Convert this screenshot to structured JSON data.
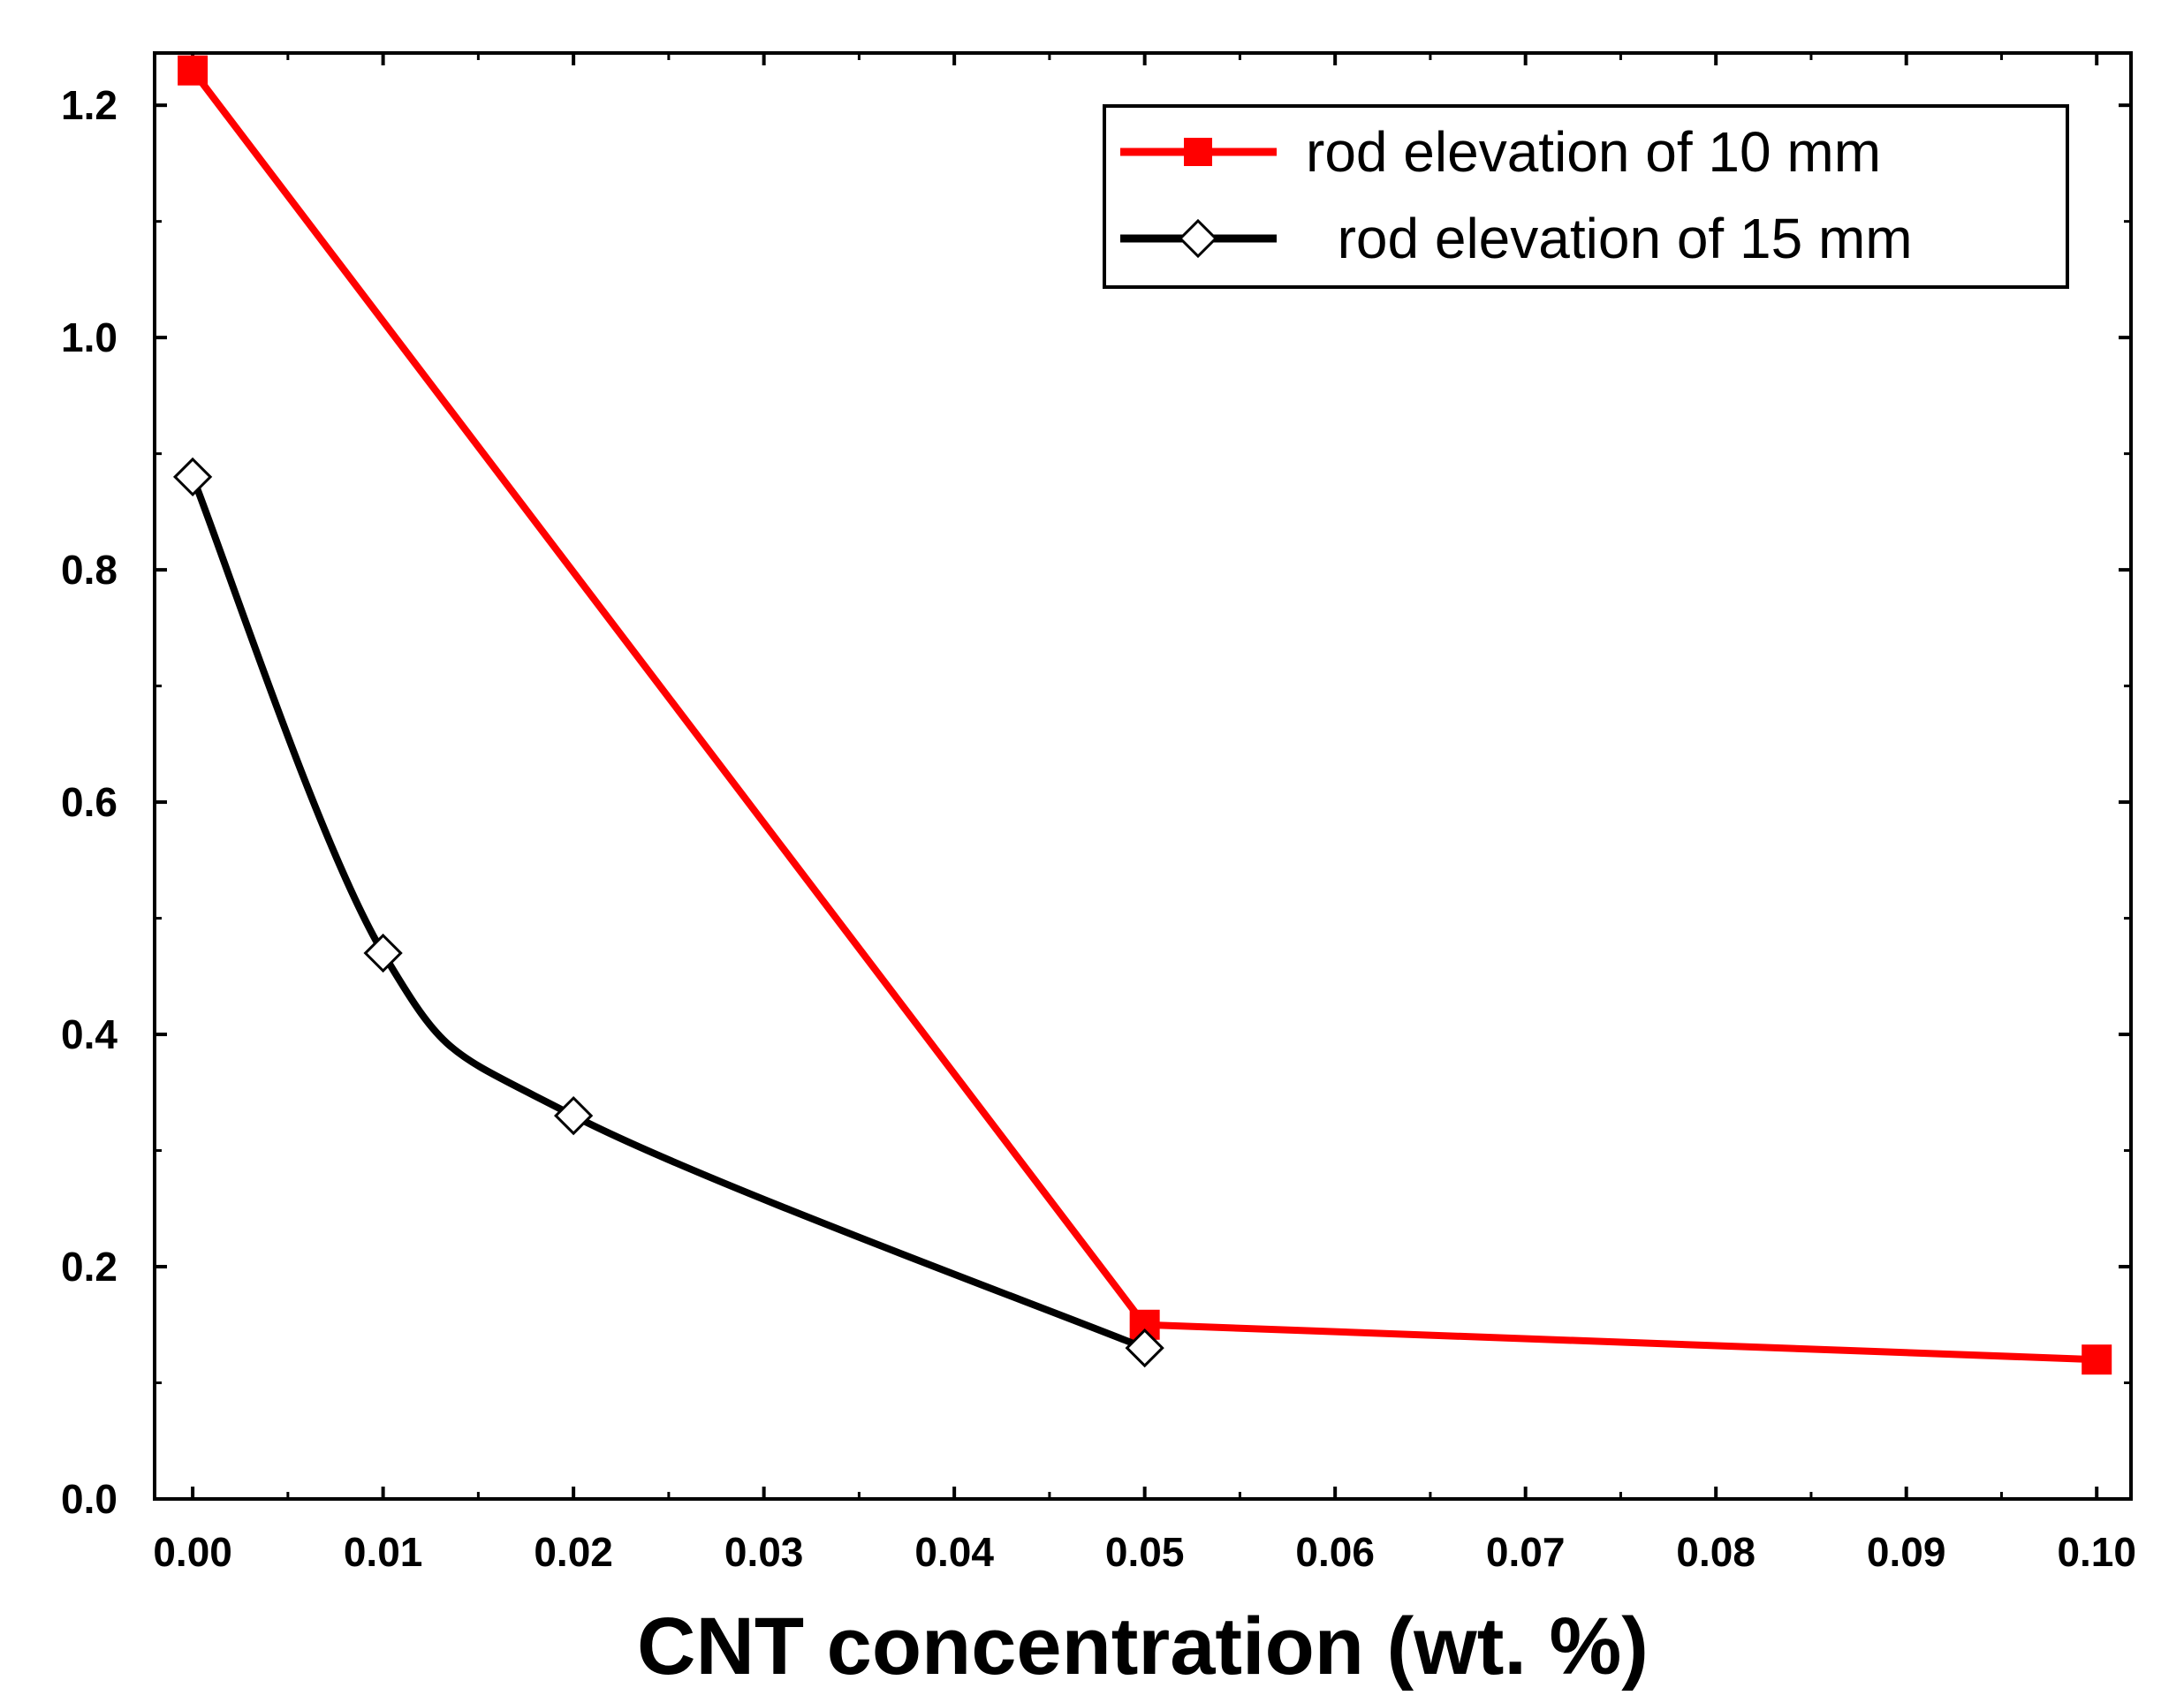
{
  "chart_data": {
    "type": "line",
    "title": "",
    "xlabel": "CNT concentration (wt. %)",
    "ylabel": "",
    "xlim": [
      -0.002,
      0.1018
    ],
    "ylim": [
      0.0,
      1.245
    ],
    "x_ticks": [
      "0.00",
      "0.01",
      "0.02",
      "0.03",
      "0.04",
      "0.05",
      "0.06",
      "0.07",
      "0.08",
      "0.09",
      "0.10"
    ],
    "x_tick_values": [
      0.0,
      0.01,
      0.02,
      0.03,
      0.04,
      0.05,
      0.06,
      0.07,
      0.08,
      0.09,
      0.1
    ],
    "y_ticks": [
      "0.0",
      "0.2",
      "0.4",
      "0.6",
      "0.8",
      "1.0",
      "1.2"
    ],
    "y_tick_values": [
      0.0,
      0.2,
      0.4,
      0.6,
      0.8,
      1.0,
      1.2
    ],
    "grid": false,
    "legend_position": "top-right",
    "series": [
      {
        "name": "rod elevation of 10 mm",
        "color": "#ff0000",
        "marker": "filled-square",
        "smooth": false,
        "x": [
          0.0,
          0.05,
          0.1
        ],
        "values": [
          1.23,
          0.15,
          0.12
        ]
      },
      {
        "name": "  rod elevation of 15 mm",
        "color": "#000000",
        "marker": "open-diamond",
        "smooth": true,
        "x": [
          0.0,
          0.01,
          0.02,
          0.05
        ],
        "values": [
          0.88,
          0.47,
          0.33,
          0.13
        ]
      }
    ]
  }
}
